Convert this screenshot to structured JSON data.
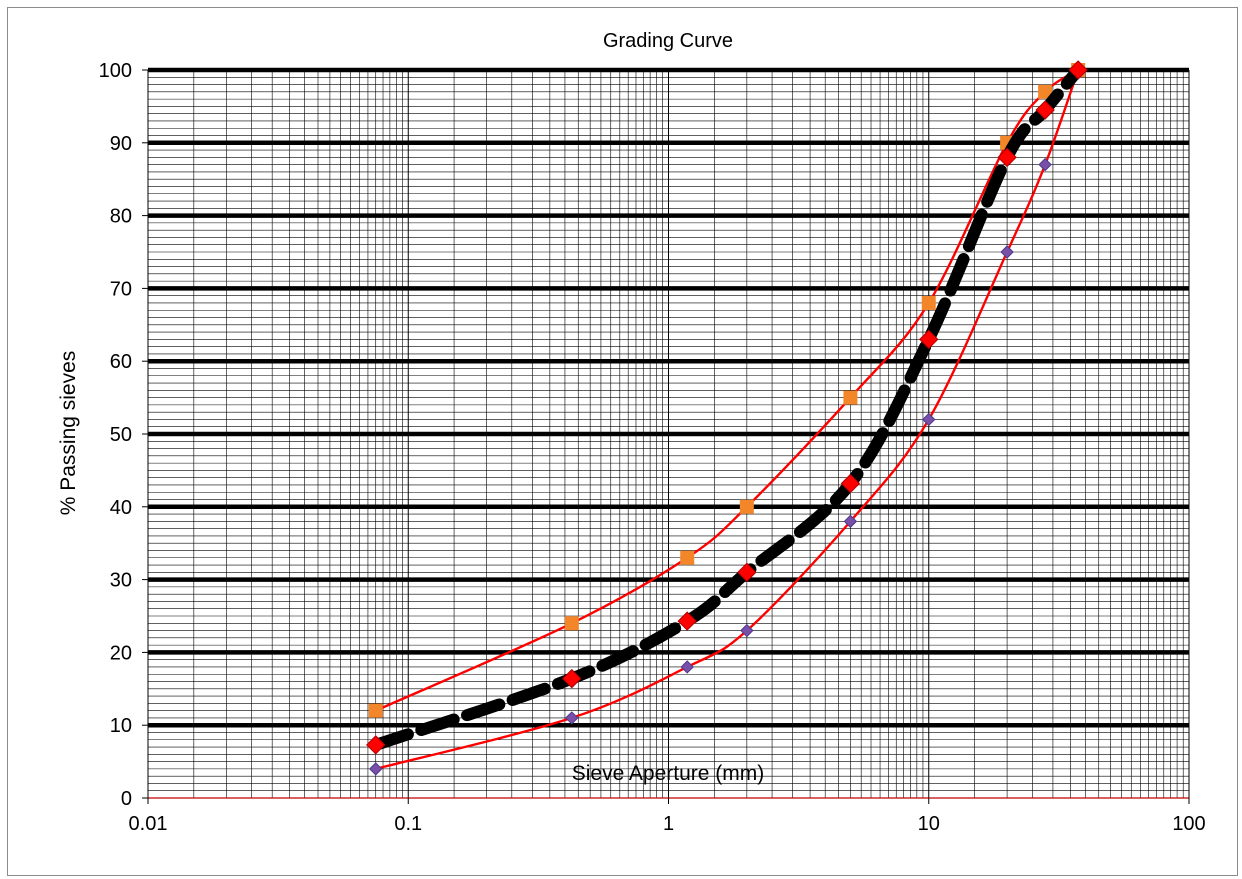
{
  "chart_data": {
    "type": "line",
    "title": "Grading Curve",
    "xlabel": "Sieve Aperture (mm)",
    "ylabel": "% Passing sieves",
    "x_scale": "log",
    "xlim": [
      0.01,
      100
    ],
    "ylim": [
      0,
      100
    ],
    "x_ticks": [
      0.01,
      0.1,
      1,
      10,
      100
    ],
    "x_tick_labels": [
      "0.01",
      "0.1",
      "1",
      "10",
      "100"
    ],
    "y_ticks": [
      0,
      10,
      20,
      30,
      40,
      50,
      60,
      70,
      80,
      90,
      100
    ],
    "y_tick_labels": [
      "0",
      "10",
      "20",
      "30",
      "40",
      "50",
      "60",
      "70",
      "80",
      "90",
      "100"
    ],
    "grid": true,
    "legend": "none",
    "series": [
      {
        "style": "upper-limit",
        "color": "#ff0000",
        "marker": "square",
        "marker_color": "#f4862a",
        "x": [
          0.075,
          0.425,
          1.18,
          2,
          5,
          10,
          20,
          28,
          37.5
        ],
        "y": [
          12,
          24,
          33,
          40,
          55,
          68,
          90,
          97,
          100
        ]
      },
      {
        "style": "lower-limit",
        "color": "#ff0000",
        "marker": "diamond",
        "marker_color": "#7a4fa8",
        "x": [
          0.075,
          0.425,
          1.18,
          2,
          5,
          10,
          20,
          28,
          37.5
        ],
        "y": [
          4,
          11,
          18,
          23,
          38,
          52,
          75,
          87,
          100
        ]
      },
      {
        "style": "mean-dashed",
        "color": "#000000",
        "marker": "diamond",
        "marker_color": "#ff0000",
        "x": [
          0.075,
          0.425,
          1.18,
          2,
          5,
          10,
          20,
          28,
          37.5
        ],
        "y": [
          7.3,
          16.4,
          24.3,
          31,
          43.2,
          63,
          88,
          94.5,
          100
        ]
      }
    ]
  }
}
